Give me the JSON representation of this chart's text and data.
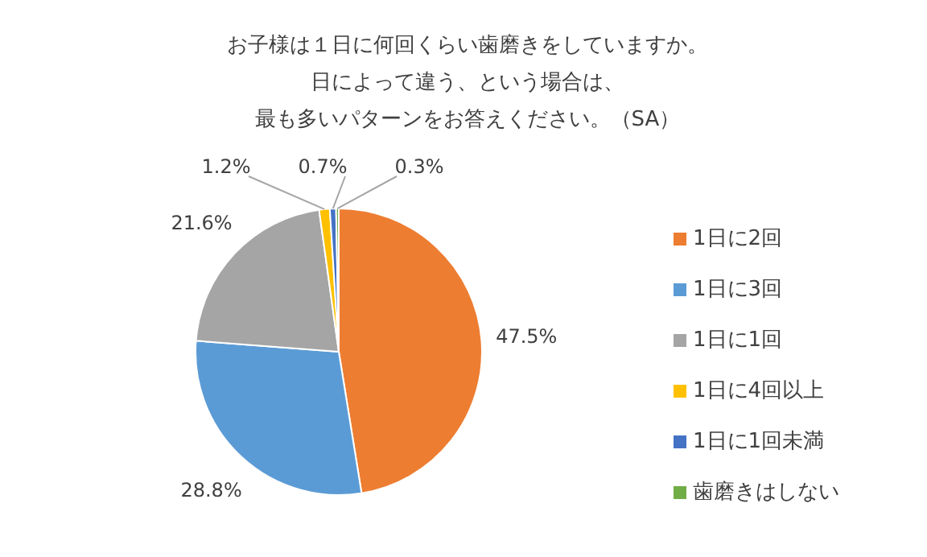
{
  "chart_data": {
    "type": "pie",
    "title": "お子様は１日に何回くらい歯磨きをしていますか。",
    "subtitle": "日によって違う、という場合は、最も多いパターンをお答えください。（SA）",
    "categories": [
      "1日に2回",
      "1日に3回",
      "1日に1回",
      "1日に4回以上",
      "1日に1回未満",
      "歯磨きはしない"
    ],
    "values": [
      47.5,
      28.8,
      21.6,
      1.2,
      0.7,
      0.3
    ],
    "colors": [
      "#ed7d31",
      "#5b9bd5",
      "#a5a5a5",
      "#ffc000",
      "#4472c4",
      "#70ad47"
    ],
    "value_labels": [
      "47.5%",
      "28.8%",
      "21.6%",
      "1.2%",
      "0.7%",
      "0.3%"
    ],
    "legend": "right"
  }
}
